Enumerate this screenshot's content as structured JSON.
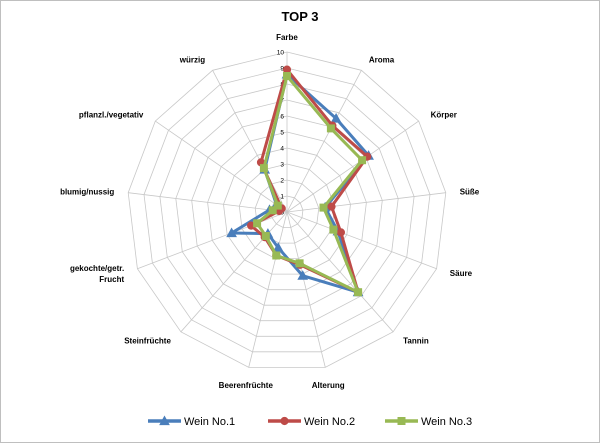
{
  "chart_data": {
    "type": "radar",
    "title": "TOP 3",
    "axes": [
      "Farbe",
      "Aroma",
      "Körper",
      "Süße",
      "Säure",
      "Tannin",
      "Alterung",
      "Beerenfrüchte",
      "Steinfrüchte",
      "gekochte/getr. Frucht",
      "blumig/nussig",
      "pflanzl./vegetativ",
      "würzig"
    ],
    "ticks": [
      "0",
      "1",
      "2",
      "3",
      "4",
      "5",
      "6",
      "7",
      "8",
      "9",
      "10"
    ],
    "rmax": 10,
    "legend_position": "bottom",
    "series": [
      {
        "name": "Wein No.1",
        "color": "#4a7ebb",
        "marker": "triangle",
        "values": [
          8.6,
          6.6,
          6.2,
          2.4,
          3.4,
          6.7,
          4.1,
          2.3,
          1.8,
          3.7,
          1.1,
          0.8,
          3.0
        ]
      },
      {
        "name": "Wein No.2",
        "color": "#be4b48",
        "marker": "circle",
        "values": [
          8.9,
          6.1,
          6.1,
          2.8,
          3.6,
          6.7,
          3.4,
          2.8,
          2.1,
          2.4,
          0.5,
          0.4,
          3.5
        ]
      },
      {
        "name": "Wein No.3",
        "color": "#98b954",
        "marker": "square",
        "values": [
          8.5,
          5.9,
          5.7,
          2.3,
          3.1,
          6.7,
          3.3,
          2.8,
          2.0,
          2.0,
          0.9,
          0.7,
          3.1
        ]
      }
    ]
  }
}
